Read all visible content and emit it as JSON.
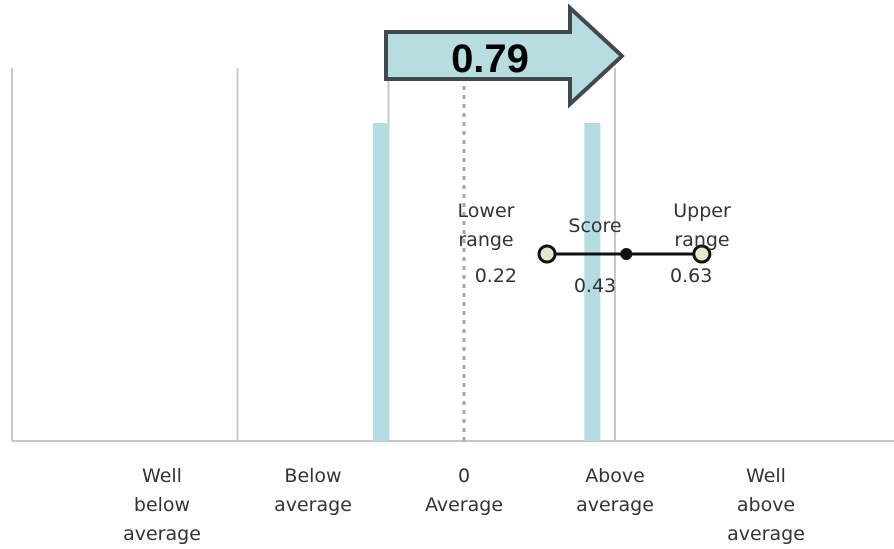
{
  "chart_data": {
    "type": "scatter",
    "title": "",
    "xlabel": "",
    "ylabel": "",
    "xlim": [
      -1.0,
      1.0
    ],
    "grid": true,
    "categories": [
      {
        "label": "Well\nbelow\naverage",
        "x": -0.8
      },
      {
        "label": "Below\naverage",
        "x": -0.4
      },
      {
        "label": "0\nAverage",
        "x": 0.0
      },
      {
        "label": "Above\naverage",
        "x": 0.4
      },
      {
        "label": "Well\nabove\naverage",
        "x": 0.8
      }
    ],
    "category_boundaries": [
      -0.6,
      -0.2,
      0.4
    ],
    "average_line": 0.0,
    "reference_bands": [
      -0.22,
      0.34
    ],
    "interval": {
      "lower": {
        "label": "Lower\nrange",
        "value": 0.22,
        "value_label": "0.22"
      },
      "score": {
        "label": "Score",
        "value": 0.43,
        "value_label": "0.43"
      },
      "upper": {
        "label": "Upper\nrange",
        "value": 0.63,
        "value_label": "0.63"
      }
    },
    "highlight": {
      "label": "0.79",
      "value": 0.79
    }
  },
  "colors": {
    "gridline": "#c8c8c8",
    "average_line": "#a6a6a6",
    "band": "#b4dde1",
    "arrow_fill": "#b8dde1",
    "arrow_stroke": "#3f4a50",
    "endpoint_fill": "#dfeccb",
    "interval_line": "#111111",
    "text": "#333333"
  }
}
